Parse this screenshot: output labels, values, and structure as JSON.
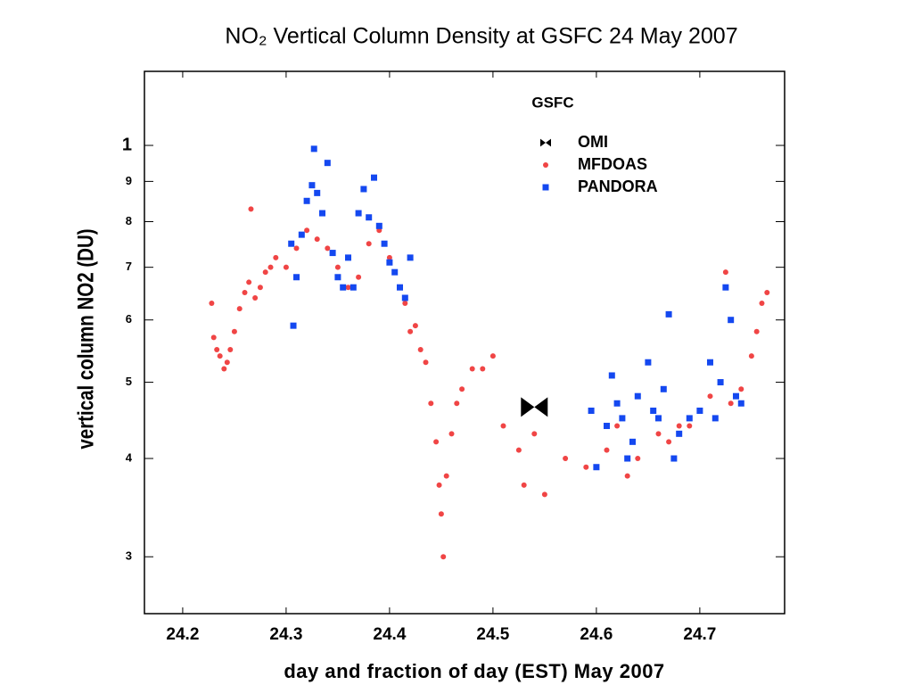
{
  "chart_data": {
    "type": "scatter",
    "title": "NO₂ Vertical Column Density at GSFC   24 May 2007",
    "x_label": "day and fraction of day (EST) May 2007",
    "y_label": "vertical column NO2 (DU)",
    "legend_title": "GSFC",
    "log_y": true,
    "xlim": [
      24.163,
      24.782
    ],
    "ylim": [
      0.254,
      1.242
    ],
    "xticks": [
      24.2,
      24.3,
      24.4,
      24.5,
      24.6,
      24.7
    ],
    "yticks": [
      {
        "value": 0.3,
        "label": "3"
      },
      {
        "value": 0.4,
        "label": "4"
      },
      {
        "value": 0.5,
        "label": "5"
      },
      {
        "value": 0.6,
        "label": "6"
      },
      {
        "value": 0.7,
        "label": "7"
      },
      {
        "value": 0.8,
        "label": "8"
      },
      {
        "value": 0.9,
        "label": "9"
      },
      1
    ],
    "series": [
      {
        "name": "OMI",
        "color": "#000000",
        "marker": "bowtie",
        "x": [
          24.54
        ],
        "values": [
          0.465
        ]
      },
      {
        "name": "MFDOAS",
        "color": "#f04545",
        "marker": "circle",
        "x": [
          24.228,
          24.23,
          24.233,
          24.236,
          24.24,
          24.243,
          24.246,
          24.25,
          24.255,
          24.26,
          24.264,
          24.266,
          24.27,
          24.275,
          24.28,
          24.285,
          24.29,
          24.3,
          24.31,
          24.32,
          24.33,
          24.34,
          24.35,
          24.36,
          24.37,
          24.38,
          24.39,
          24.4,
          24.41,
          24.415,
          24.42,
          24.425,
          24.43,
          24.435,
          24.44,
          24.445,
          24.448,
          24.45,
          24.452,
          24.455,
          24.46,
          24.465,
          24.47,
          24.48,
          24.49,
          24.5,
          24.51,
          24.525,
          24.53,
          24.54,
          24.55,
          24.57,
          24.59,
          24.61,
          24.62,
          24.63,
          24.64,
          24.66,
          24.67,
          24.68,
          24.69,
          24.7,
          24.71,
          24.72,
          24.725,
          24.73,
          24.74,
          24.75,
          24.755,
          24.76,
          24.765
        ],
        "values": [
          0.63,
          0.57,
          0.55,
          0.54,
          0.52,
          0.53,
          0.55,
          0.58,
          0.62,
          0.65,
          0.67,
          0.83,
          0.64,
          0.66,
          0.69,
          0.7,
          0.72,
          0.7,
          0.74,
          0.78,
          0.76,
          0.74,
          0.7,
          0.66,
          0.68,
          0.75,
          0.78,
          0.72,
          0.66,
          0.63,
          0.58,
          0.59,
          0.55,
          0.53,
          0.47,
          0.42,
          0.37,
          0.34,
          0.3,
          0.38,
          0.43,
          0.47,
          0.49,
          0.52,
          0.52,
          0.54,
          0.44,
          0.41,
          0.37,
          0.43,
          0.36,
          0.4,
          0.39,
          0.41,
          0.44,
          0.38,
          0.4,
          0.43,
          0.42,
          0.44,
          0.44,
          0.46,
          0.48,
          0.5,
          0.69,
          0.47,
          0.49,
          0.54,
          0.58,
          0.63,
          0.65
        ]
      },
      {
        "name": "PANDORA",
        "color": "#1448f0",
        "marker": "square",
        "x": [
          24.305,
          24.307,
          24.31,
          24.315,
          24.32,
          24.325,
          24.327,
          24.33,
          24.335,
          24.34,
          24.345,
          24.35,
          24.355,
          24.36,
          24.365,
          24.37,
          24.375,
          24.38,
          24.385,
          24.39,
          24.395,
          24.4,
          24.405,
          24.41,
          24.415,
          24.42,
          24.595,
          24.6,
          24.61,
          24.615,
          24.62,
          24.625,
          24.63,
          24.635,
          24.64,
          24.65,
          24.655,
          24.66,
          24.665,
          24.67,
          24.675,
          24.68,
          24.69,
          24.7,
          24.71,
          24.715,
          24.72,
          24.725,
          24.73,
          24.735,
          24.74
        ],
        "values": [
          0.75,
          0.59,
          0.68,
          0.77,
          0.85,
          0.89,
          0.99,
          0.87,
          0.82,
          0.95,
          0.73,
          0.68,
          0.66,
          0.72,
          0.66,
          0.82,
          0.88,
          0.81,
          0.91,
          0.79,
          0.75,
          0.71,
          0.69,
          0.66,
          0.64,
          0.72,
          0.46,
          0.39,
          0.44,
          0.51,
          0.47,
          0.45,
          0.4,
          0.42,
          0.48,
          0.53,
          0.46,
          0.45,
          0.49,
          0.61,
          0.4,
          0.43,
          0.45,
          0.46,
          0.53,
          0.45,
          0.5,
          0.66,
          0.6,
          0.48,
          0.47
        ]
      }
    ]
  }
}
